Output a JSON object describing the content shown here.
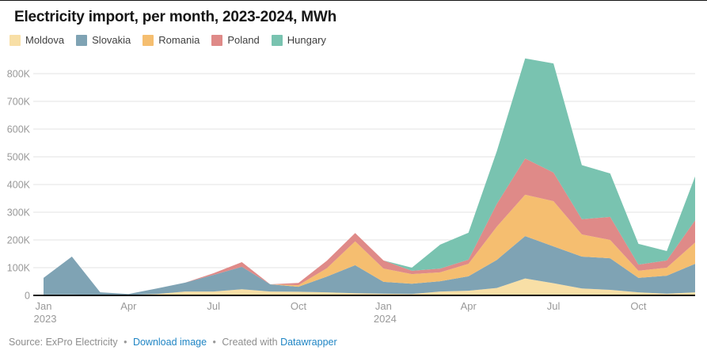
{
  "title": "Electricity import, per month, 2023-2024, MWh",
  "legend": [
    {
      "label": "Moldova",
      "color": "#F8DFA6"
    },
    {
      "label": "Slovakia",
      "color": "#7FA3B4"
    },
    {
      "label": "Romania",
      "color": "#F5BE70"
    },
    {
      "label": "Poland",
      "color": "#DF8A88"
    },
    {
      "label": "Hungary",
      "color": "#79C3B0"
    }
  ],
  "chart_data": {
    "type": "area",
    "stacked": true,
    "title": "Electricity import, per month, 2023-2024, MWh",
    "unit": "MWh",
    "grid": true,
    "legend_position": "top",
    "ylim": [
      0,
      900000
    ],
    "y_ticks": [
      {
        "value": 0,
        "label": "0"
      },
      {
        "value": 100000,
        "label": "100K"
      },
      {
        "value": 200000,
        "label": "200K"
      },
      {
        "value": 300000,
        "label": "300K"
      },
      {
        "value": 400000,
        "label": "400K"
      },
      {
        "value": 500000,
        "label": "500K"
      },
      {
        "value": 600000,
        "label": "600K"
      },
      {
        "value": 700000,
        "label": "700K"
      },
      {
        "value": 800000,
        "label": "800K"
      }
    ],
    "x": [
      "2023-01",
      "2023-02",
      "2023-03",
      "2023-04",
      "2023-05",
      "2023-06",
      "2023-07",
      "2023-08",
      "2023-09",
      "2023-10",
      "2023-11",
      "2023-12",
      "2024-01",
      "2024-02",
      "2024-03",
      "2024-04",
      "2024-05",
      "2024-06",
      "2024-07",
      "2024-08",
      "2024-09",
      "2024-10",
      "2024-11",
      "2024-12"
    ],
    "x_tick_labels": [
      {
        "index": 0,
        "label": "Jan",
        "sublabel": "2023"
      },
      {
        "index": 3,
        "label": "Apr"
      },
      {
        "index": 6,
        "label": "Jul"
      },
      {
        "index": 9,
        "label": "Oct"
      },
      {
        "index": 12,
        "label": "Jan",
        "sublabel": "2024"
      },
      {
        "index": 15,
        "label": "Apr"
      },
      {
        "index": 18,
        "label": "Jul"
      },
      {
        "index": 21,
        "label": "Oct"
      }
    ],
    "series": [
      {
        "name": "Moldova",
        "values": [
          3000,
          3000,
          2000,
          2000,
          5000,
          14000,
          14000,
          22000,
          14000,
          13000,
          11000,
          8000,
          6000,
          5000,
          14000,
          17000,
          27000,
          61000,
          44000,
          25000,
          20000,
          11000,
          6000,
          11000
        ]
      },
      {
        "name": "Slovakia",
        "values": [
          60000,
          137000,
          9000,
          3000,
          20000,
          32000,
          60000,
          81000,
          26000,
          18000,
          57000,
          101000,
          43000,
          37000,
          37000,
          52000,
          101000,
          153000,
          133000,
          115000,
          114000,
          52000,
          65000,
          103000
        ]
      },
      {
        "name": "Romania",
        "values": [
          0,
          0,
          0,
          0,
          0,
          0,
          0,
          0,
          0,
          6000,
          30000,
          86000,
          48000,
          35000,
          32000,
          45000,
          120000,
          149000,
          163000,
          80000,
          66000,
          26000,
          29000,
          77000
        ]
      },
      {
        "name": "Poland",
        "values": [
          0,
          0,
          0,
          0,
          0,
          0,
          6000,
          17000,
          0,
          8000,
          27000,
          30000,
          29000,
          12000,
          14000,
          15000,
          82000,
          131000,
          103000,
          55000,
          83000,
          22000,
          26000,
          80000
        ]
      },
      {
        "name": "Hungary",
        "values": [
          0,
          0,
          0,
          0,
          0,
          0,
          0,
          0,
          0,
          0,
          0,
          0,
          0,
          11000,
          86000,
          97000,
          190000,
          361000,
          394000,
          195000,
          157000,
          75000,
          34000,
          158000
        ]
      }
    ]
  },
  "footer": {
    "source_label": "Source:",
    "source_name": "ExPro Electricity",
    "bullet": "•",
    "download_label": "Download image",
    "created_with": "Created with",
    "datawrapper_label": "Datawrapper"
  },
  "colors": {
    "grid": "#e3e3e3",
    "axis_text": "#999999",
    "baseline": "#111111",
    "link": "#1f85c4"
  }
}
